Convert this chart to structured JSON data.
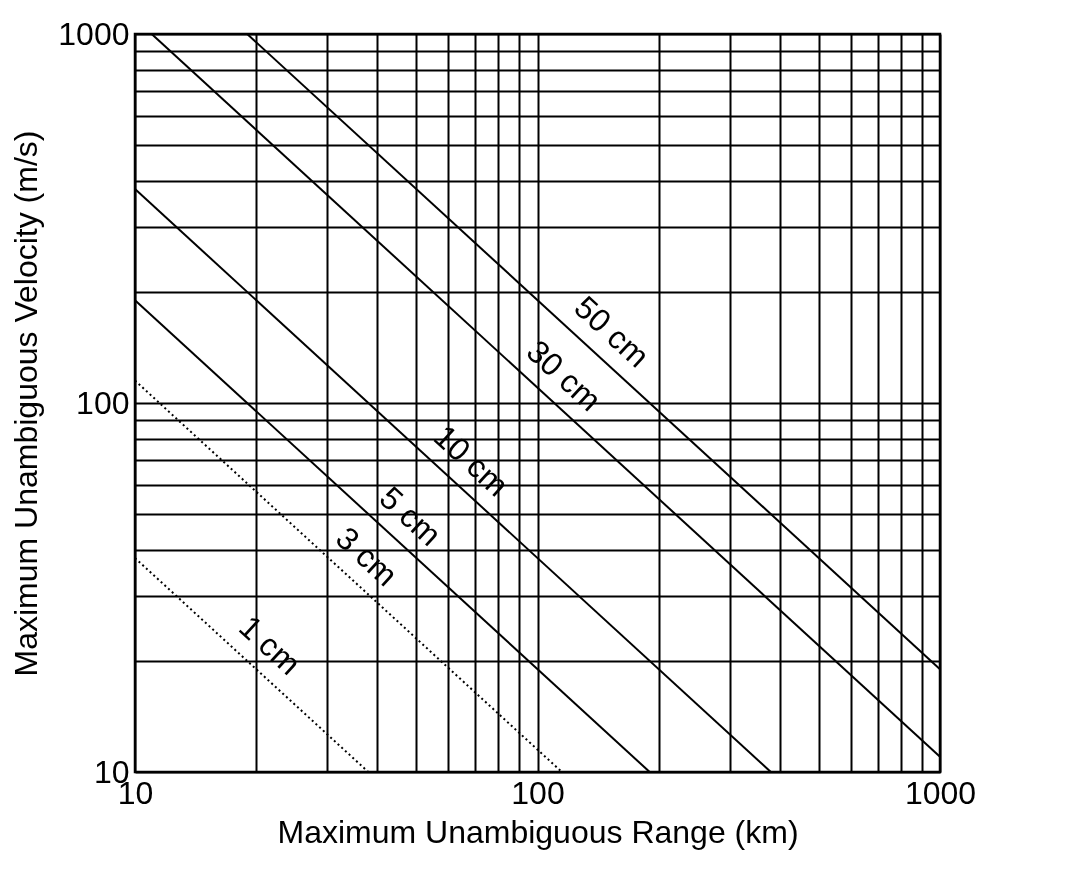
{
  "chart_data": {
    "type": "line",
    "xlabel": "Maximum Unambiguous Range (km)",
    "ylabel": "Maximum Unambiguous Velocity (m/s)",
    "log": "xy",
    "grid": true,
    "marker": "none",
    "xlim": [
      10,
      1000
    ],
    "ylim": [
      10,
      1000
    ],
    "xticks": [
      10,
      {
        "value": 20,
        "label": null
      },
      {
        "value": 30,
        "label": null
      },
      {
        "value": 40,
        "label": null
      },
      {
        "value": 50,
        "label": null
      },
      {
        "value": 60,
        "label": null
      },
      {
        "value": 70,
        "label": null
      },
      {
        "value": 80,
        "label": null
      },
      {
        "value": 90,
        "label": null
      },
      100,
      {
        "value": 200,
        "label": null
      },
      {
        "value": 300,
        "label": null
      },
      {
        "value": 400,
        "label": null
      },
      {
        "value": 500,
        "label": null
      },
      {
        "value": 600,
        "label": null
      },
      {
        "value": 700,
        "label": null
      },
      {
        "value": 800,
        "label": null
      },
      {
        "value": 900,
        "label": null
      },
      1000
    ],
    "yticks": [
      10,
      {
        "value": 20,
        "label": null
      },
      {
        "value": 30,
        "label": null
      },
      {
        "value": 40,
        "label": null
      },
      {
        "value": 50,
        "label": null
      },
      {
        "value": 60,
        "label": null
      },
      {
        "value": 70,
        "label": null
      },
      {
        "value": 80,
        "label": null
      },
      {
        "value": 90,
        "label": null
      },
      100,
      {
        "value": 200,
        "label": null
      },
      {
        "value": 300,
        "label": null
      },
      {
        "value": 400,
        "label": null
      },
      {
        "value": 500,
        "label": null
      },
      {
        "value": 600,
        "label": null
      },
      {
        "value": 700,
        "label": null
      },
      {
        "value": 800,
        "label": null
      },
      {
        "value": 900,
        "label": null
      },
      1000
    ],
    "series": [
      {
        "name": "50 cm",
        "color": "#000000",
        "line_style": "solid",
        "x": [
          19,
          1000
        ],
        "values": [
          1000,
          19
        ]
      },
      {
        "name": "30 cm",
        "color": "#000000",
        "line_style": "solid",
        "x": [
          11,
          1000
        ],
        "values": [
          1000,
          11
        ]
      },
      {
        "name": "10 cm",
        "color": "#000000",
        "line_style": "solid",
        "x": [
          10,
          380
        ],
        "values": [
          380,
          10
        ]
      },
      {
        "name": "5 cm",
        "color": "#000000",
        "line_style": "solid",
        "x": [
          10,
          190
        ],
        "values": [
          190,
          10
        ]
      },
      {
        "name": "3 cm",
        "color": "#000000",
        "line_style": "dotted",
        "x": [
          10,
          115
        ],
        "values": [
          115,
          10
        ]
      },
      {
        "name": "1 cm",
        "color": "#000000",
        "line_style": "dotted",
        "x": [
          10,
          38
        ],
        "values": [
          38,
          10
        ]
      }
    ]
  }
}
